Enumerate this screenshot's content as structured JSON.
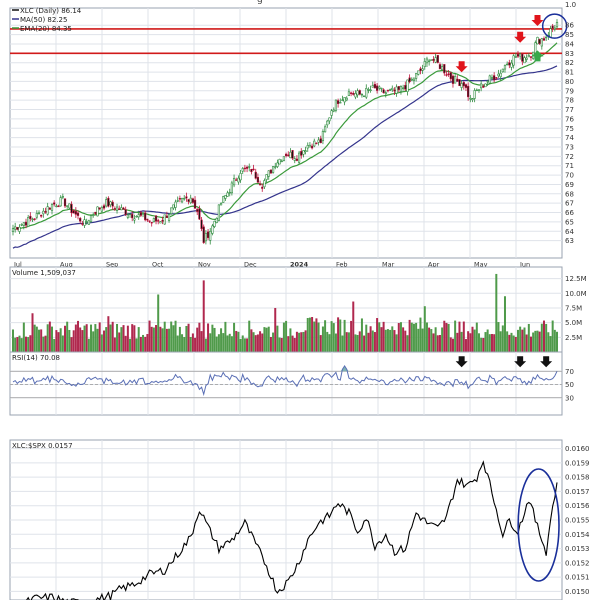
{
  "title_peek": "g",
  "colors": {
    "up": "#2e8b3e",
    "down": "#c0143c",
    "candle_up": "#ffffff",
    "candle_down": "#111111",
    "ma50": "#34348c",
    "ema20": "#3a9a3a",
    "resistance": "#d11a1a",
    "rsi": "#5a6fb5",
    "rsi_fill": "#7fb3b3",
    "ratio": "#000000",
    "circle": "#1a2f9a",
    "grid": "#dfe3ea",
    "panel_bg": "#ffffff",
    "panel_border": "#9aa3b0",
    "arrow_red": "#e0141b",
    "arrow_green": "#37a84a",
    "arrow_black": "#111111"
  },
  "chart_data": [
    {
      "type": "candlestick",
      "legend": [
        "XLC (Daily) 86.14",
        "MA(50) 82.25",
        "EMA(20) 84.35"
      ],
      "x_tick_labels": [
        "Jul",
        "Aug",
        "Sep",
        "Oct",
        "Nov",
        "Dec",
        "2024",
        "Feb",
        "Mar",
        "Apr",
        "May",
        "Jun"
      ],
      "x_tick_bold": [
        false,
        false,
        false,
        false,
        false,
        false,
        true,
        false,
        false,
        false,
        false,
        false
      ],
      "y_tick_labels": [
        "86",
        "85",
        "84",
        "83",
        "82",
        "81",
        "80",
        "79",
        "78",
        "77",
        "76",
        "75",
        "74",
        "73",
        "72",
        "71",
        "70",
        "69",
        "68",
        "67",
        "66",
        "65",
        "64",
        "63"
      ],
      "y_axis_top_label": "1.0",
      "ylim": [
        62,
        87.2
      ],
      "resistance_levels": [
        85.6,
        83.0
      ],
      "price_anchors": [
        [
          0,
          64.3
        ],
        [
          10,
          65.5
        ],
        [
          18,
          66.8
        ],
        [
          23,
          67.3
        ],
        [
          28,
          66.0
        ],
        [
          33,
          64.8
        ],
        [
          38,
          66.2
        ],
        [
          43,
          67.0
        ],
        [
          50,
          66.3
        ],
        [
          55,
          65.8
        ],
        [
          60,
          65.5
        ],
        [
          64,
          65.0
        ],
        [
          69,
          65.3
        ],
        [
          74,
          66.5
        ],
        [
          78,
          67.3
        ],
        [
          82,
          67.7
        ],
        [
          85,
          66.2
        ],
        [
          88,
          63.0
        ],
        [
          92,
          64.5
        ],
        [
          96,
          67.0
        ],
        [
          100,
          68.5
        ],
        [
          105,
          70.5
        ],
        [
          110,
          70.6
        ],
        [
          115,
          69.0
        ],
        [
          121,
          71.3
        ],
        [
          126,
          72.3
        ],
        [
          131,
          72.0
        ],
        [
          136,
          73.2
        ],
        [
          142,
          73.6
        ],
        [
          147,
          77.0
        ],
        [
          150,
          78.0
        ],
        [
          155,
          78.8
        ],
        [
          160,
          78.6
        ],
        [
          166,
          79.2
        ],
        [
          172,
          78.8
        ],
        [
          178,
          79.0
        ],
        [
          184,
          80.1
        ],
        [
          189,
          81.4
        ],
        [
          192,
          82.6
        ],
        [
          195,
          82.1
        ],
        [
          199,
          81.2
        ],
        [
          203,
          80.2
        ],
        [
          208,
          79.8
        ],
        [
          211,
          78.0
        ],
        [
          214,
          79.0
        ],
        [
          219,
          80.1
        ],
        [
          224,
          80.8
        ],
        [
          228,
          82.0
        ],
        [
          232,
          82.7
        ],
        [
          235,
          82.5
        ],
        [
          239,
          83.0
        ],
        [
          242,
          84.4
        ],
        [
          245,
          84.6
        ],
        [
          249,
          85.7
        ],
        [
          251,
          86.2
        ]
      ],
      "annotations": {
        "red_arrows_at_index": [
          207,
          234,
          242
        ],
        "green_arrow_at_index": 242,
        "circled_index": 249
      }
    },
    {
      "type": "bar",
      "legend": "Volume 1,509,037",
      "y_tick_labels": [
        "12.5M",
        "10.0M",
        "7.5M",
        "5.0M",
        "2.5M"
      ],
      "y_tick_values": [
        12.5,
        10.0,
        7.5,
        5.0,
        2.5
      ],
      "ylim": [
        0,
        13.8
      ],
      "spikes": [
        [
          88,
          12.2
        ],
        [
          67,
          9.8
        ],
        [
          157,
          8.6
        ],
        [
          223,
          13.3
        ],
        [
          227,
          9.5
        ],
        [
          9,
          6.6
        ],
        [
          44,
          6.1
        ],
        [
          121,
          7.5
        ],
        [
          190,
          7.8
        ]
      ]
    },
    {
      "type": "line",
      "legend": "RSI(14) 70.08",
      "y_tick_labels": [
        "70",
        "50",
        "30"
      ],
      "y_tick_values": [
        70,
        50,
        30
      ],
      "ylim": [
        10,
        90
      ],
      "overbought_fill_near_index": 153,
      "black_arrows_at_index": [
        207,
        234,
        246
      ]
    },
    {
      "type": "line",
      "legend": "XLC:$SPX 0.0157",
      "y_tick_labels": [
        "0.0160",
        "0.0159",
        "0.0158",
        "0.0157",
        "0.0156",
        "0.0155",
        "0.0154",
        "0.0153",
        "0.0152",
        "0.0151",
        "0.0150"
      ],
      "y_tick_values": [
        0.016,
        0.0159,
        0.0158,
        0.0157,
        0.0156,
        0.0155,
        0.0154,
        0.0153,
        0.0152,
        0.0151,
        0.015
      ],
      "ylim": [
        0.01494,
        0.01606
      ],
      "ratio_anchors": [
        [
          0,
          0.01488
        ],
        [
          10,
          0.01495
        ],
        [
          18,
          0.01496
        ],
        [
          26,
          0.01492
        ],
        [
          35,
          0.01493
        ],
        [
          45,
          0.01497
        ],
        [
          50,
          0.01502
        ],
        [
          56,
          0.01505
        ],
        [
          63,
          0.01512
        ],
        [
          70,
          0.01515
        ],
        [
          76,
          0.01526
        ],
        [
          82,
          0.01538
        ],
        [
          86,
          0.01558
        ],
        [
          90,
          0.01545
        ],
        [
          95,
          0.0153
        ],
        [
          101,
          0.01536
        ],
        [
          107,
          0.01548
        ],
        [
          113,
          0.0153
        ],
        [
          117,
          0.01518
        ],
        [
          122,
          0.015
        ],
        [
          127,
          0.01507
        ],
        [
          132,
          0.01521
        ],
        [
          136,
          0.01536
        ],
        [
          141,
          0.01548
        ],
        [
          146,
          0.01553
        ],
        [
          150,
          0.01562
        ],
        [
          155,
          0.01555
        ],
        [
          159,
          0.01542
        ],
        [
          163,
          0.01552
        ],
        [
          167,
          0.01532
        ],
        [
          172,
          0.0154
        ],
        [
          176,
          0.01528
        ],
        [
          181,
          0.0153
        ],
        [
          186,
          0.01555
        ],
        [
          191,
          0.01548
        ],
        [
          196,
          0.01544
        ],
        [
          200,
          0.01552
        ],
        [
          205,
          0.01578
        ],
        [
          210,
          0.01574
        ],
        [
          214,
          0.0158
        ],
        [
          217,
          0.01592
        ],
        [
          220,
          0.01575
        ],
        [
          224,
          0.01552
        ],
        [
          226,
          0.0154
        ],
        [
          229,
          0.0155
        ],
        [
          233,
          0.01542
        ],
        [
          238,
          0.01565
        ],
        [
          242,
          0.01545
        ],
        [
          246,
          0.01528
        ],
        [
          249,
          0.0156
        ],
        [
          251,
          0.01575
        ]
      ],
      "circled_index_range": [
        234,
        251
      ]
    }
  ]
}
